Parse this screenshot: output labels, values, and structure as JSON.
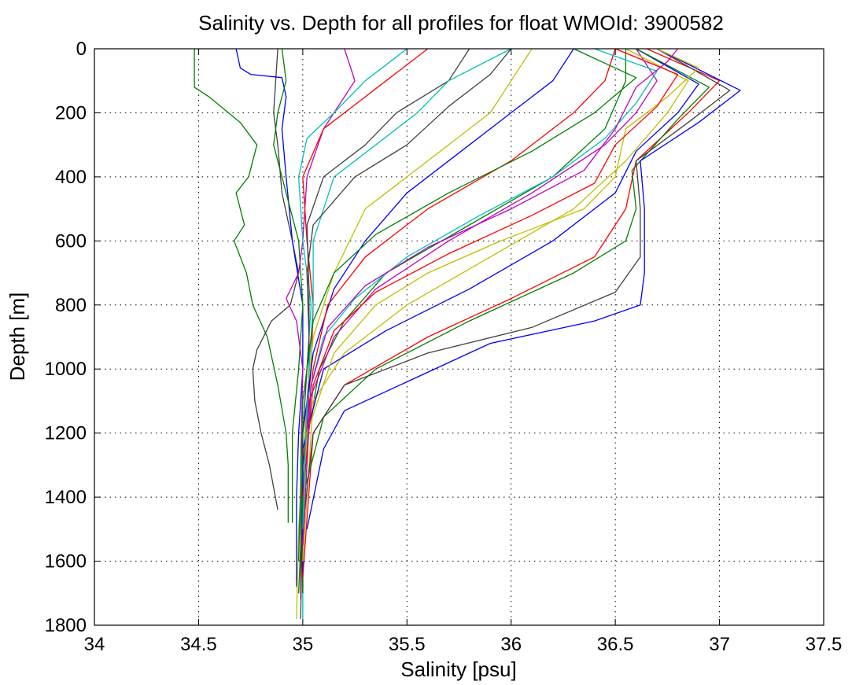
{
  "chart_data": {
    "type": "line",
    "title": "Salinity vs. Depth for all profiles for float WMOId: 3900582",
    "xlabel": "Salinity [psu]",
    "ylabel": "Depth [m]",
    "xlim": [
      34,
      37.5
    ],
    "ylim": [
      0,
      1800
    ],
    "y_reversed": true,
    "grid": "dotted",
    "legend": "none",
    "x_ticks": [
      "34",
      "34.5",
      "35",
      "35.5",
      "36",
      "36.5",
      "37",
      "37.5"
    ],
    "y_ticks": [
      "0",
      "200",
      "400",
      "600",
      "800",
      "1000",
      "1200",
      "1400",
      "1600",
      "1800"
    ],
    "series_colors": [
      "#0000ff",
      "#008000",
      "#ff0000",
      "#00bfbf",
      "#bf00bf",
      "#bfbf00",
      "#404040"
    ],
    "series": [
      {
        "color": "#008000",
        "points": [
          [
            34.48,
            0
          ],
          [
            34.48,
            120
          ],
          [
            34.55,
            150
          ],
          [
            34.7,
            230
          ],
          [
            34.78,
            300
          ],
          [
            34.74,
            400
          ],
          [
            34.68,
            450
          ],
          [
            34.72,
            550
          ],
          [
            34.67,
            600
          ],
          [
            34.73,
            700
          ],
          [
            34.76,
            800
          ],
          [
            34.83,
            900
          ],
          [
            34.88,
            1050
          ],
          [
            34.92,
            1200
          ],
          [
            34.93,
            1300
          ],
          [
            34.93,
            1480
          ]
        ]
      },
      {
        "color": "#404040",
        "points": [
          [
            34.88,
            0
          ],
          [
            34.86,
            200
          ],
          [
            34.88,
            300
          ],
          [
            34.9,
            450
          ],
          [
            34.95,
            600
          ],
          [
            34.98,
            700
          ],
          [
            34.94,
            800
          ],
          [
            34.85,
            850
          ],
          [
            34.78,
            940
          ],
          [
            34.76,
            1000
          ],
          [
            34.77,
            1100
          ],
          [
            34.8,
            1200
          ],
          [
            34.84,
            1300
          ],
          [
            34.88,
            1440
          ]
        ]
      },
      {
        "color": "#0000ff",
        "points": [
          [
            34.68,
            0
          ],
          [
            34.7,
            60
          ],
          [
            34.75,
            80
          ],
          [
            34.9,
            90
          ],
          [
            34.92,
            150
          ],
          [
            34.9,
            250
          ],
          [
            34.92,
            400
          ],
          [
            34.95,
            600
          ],
          [
            35.0,
            800
          ],
          [
            35.0,
            1000
          ],
          [
            34.98,
            1200
          ],
          [
            34.97,
            1400
          ],
          [
            34.97,
            1680
          ]
        ]
      },
      {
        "color": "#008000",
        "points": [
          [
            34.9,
            0
          ],
          [
            34.92,
            100
          ],
          [
            34.88,
            200
          ],
          [
            34.86,
            300
          ],
          [
            34.92,
            450
          ],
          [
            34.98,
            600
          ],
          [
            35.0,
            800
          ],
          [
            34.98,
            1000
          ],
          [
            34.95,
            1200
          ],
          [
            34.95,
            1480
          ]
        ]
      },
      {
        "color": "#bf00bf",
        "points": [
          [
            35.2,
            0
          ],
          [
            35.25,
            100
          ],
          [
            35.1,
            250
          ],
          [
            35.02,
            400
          ],
          [
            35.0,
            600
          ],
          [
            34.98,
            700
          ],
          [
            34.92,
            780
          ],
          [
            34.97,
            850
          ],
          [
            35.0,
            1000
          ],
          [
            34.99,
            1300
          ],
          [
            34.99,
            1600
          ],
          [
            34.99,
            1720
          ]
        ]
      },
      {
        "color": "#00bfbf",
        "points": [
          [
            35.5,
            0
          ],
          [
            35.3,
            100
          ],
          [
            35.15,
            200
          ],
          [
            35.02,
            280
          ],
          [
            34.98,
            400
          ],
          [
            35.0,
            600
          ],
          [
            35.04,
            800
          ],
          [
            35.02,
            1000
          ],
          [
            34.99,
            1300
          ],
          [
            34.99,
            1700
          ]
        ]
      },
      {
        "color": "#ff0000",
        "points": [
          [
            35.6,
            0
          ],
          [
            35.4,
            100
          ],
          [
            35.1,
            250
          ],
          [
            35.0,
            400
          ],
          [
            35.02,
            600
          ],
          [
            35.05,
            800
          ],
          [
            35.04,
            1000
          ],
          [
            35.0,
            1300
          ],
          [
            34.99,
            1700
          ]
        ]
      },
      {
        "color": "#404040",
        "points": [
          [
            35.8,
            0
          ],
          [
            35.7,
            100
          ],
          [
            35.45,
            200
          ],
          [
            35.3,
            300
          ],
          [
            35.1,
            400
          ],
          [
            35.02,
            550
          ],
          [
            35.03,
            750
          ],
          [
            35.03,
            1000
          ],
          [
            35.0,
            1400
          ],
          [
            34.99,
            1780
          ]
        ]
      },
      {
        "color": "#00bfbf",
        "points": [
          [
            36.0,
            0
          ],
          [
            35.7,
            100
          ],
          [
            35.55,
            200
          ],
          [
            35.35,
            300
          ],
          [
            35.15,
            400
          ],
          [
            35.05,
            600
          ],
          [
            35.05,
            800
          ],
          [
            35.03,
            1000
          ],
          [
            35.0,
            1400
          ],
          [
            35.0,
            1780
          ]
        ]
      },
      {
        "color": "#bfbf00",
        "points": [
          [
            36.1,
            0
          ],
          [
            36.0,
            100
          ],
          [
            35.9,
            200
          ],
          [
            35.6,
            350
          ],
          [
            35.3,
            500
          ],
          [
            35.15,
            700
          ],
          [
            35.05,
            900
          ],
          [
            35.02,
            1100
          ],
          [
            34.98,
            1500
          ],
          [
            34.97,
            1780
          ]
        ]
      },
      {
        "color": "#0000ff",
        "points": [
          [
            36.3,
            0
          ],
          [
            36.2,
            100
          ],
          [
            36.0,
            200
          ],
          [
            35.8,
            300
          ],
          [
            35.5,
            450
          ],
          [
            35.3,
            600
          ],
          [
            35.15,
            750
          ],
          [
            35.05,
            950
          ],
          [
            35.0,
            1200
          ],
          [
            35.0,
            1700
          ]
        ]
      },
      {
        "color": "#ff0000",
        "points": [
          [
            36.5,
            0
          ],
          [
            36.45,
            100
          ],
          [
            36.3,
            200
          ],
          [
            36.0,
            350
          ],
          [
            35.6,
            500
          ],
          [
            35.3,
            650
          ],
          [
            35.12,
            800
          ],
          [
            35.05,
            1000
          ],
          [
            35.0,
            1300
          ],
          [
            35.0,
            1680
          ]
        ]
      },
      {
        "color": "#008000",
        "points": [
          [
            36.55,
            0
          ],
          [
            36.55,
            100
          ],
          [
            36.45,
            250
          ],
          [
            36.2,
            400
          ],
          [
            35.8,
            550
          ],
          [
            35.4,
            700
          ],
          [
            35.2,
            850
          ],
          [
            35.08,
            1000
          ],
          [
            35.0,
            1300
          ],
          [
            35.0,
            1700
          ]
        ]
      },
      {
        "color": "#bf00bf",
        "points": [
          [
            36.6,
            0
          ],
          [
            36.7,
            100
          ],
          [
            36.6,
            200
          ],
          [
            36.45,
            300
          ],
          [
            36.1,
            450
          ],
          [
            35.7,
            600
          ],
          [
            35.35,
            750
          ],
          [
            35.15,
            900
          ],
          [
            35.03,
            1100
          ],
          [
            35.0,
            1600
          ]
        ]
      },
      {
        "color": "#bfbf00",
        "points": [
          [
            36.55,
            0
          ],
          [
            36.85,
            100
          ],
          [
            36.75,
            200
          ],
          [
            36.55,
            350
          ],
          [
            36.3,
            500
          ],
          [
            35.9,
            650
          ],
          [
            35.5,
            800
          ],
          [
            35.2,
            950
          ],
          [
            35.05,
            1100
          ],
          [
            35.0,
            1600
          ]
        ]
      },
      {
        "color": "#0000ff",
        "points": [
          [
            36.6,
            0
          ],
          [
            36.9,
            110
          ],
          [
            36.8,
            200
          ],
          [
            36.6,
            320
          ],
          [
            36.5,
            450
          ],
          [
            36.2,
            600
          ],
          [
            35.8,
            750
          ],
          [
            35.4,
            880
          ],
          [
            35.1,
            1000
          ],
          [
            35.0,
            1250
          ],
          [
            35.0,
            1650
          ]
        ]
      },
      {
        "color": "#ff0000",
        "points": [
          [
            36.65,
            0
          ],
          [
            37.0,
            100
          ],
          [
            36.85,
            200
          ],
          [
            36.6,
            350
          ],
          [
            36.55,
            500
          ],
          [
            36.4,
            650
          ],
          [
            36.0,
            780
          ],
          [
            35.6,
            900
          ],
          [
            35.2,
            1050
          ],
          [
            35.05,
            1200
          ],
          [
            35.0,
            1650
          ]
        ]
      },
      {
        "color": "#008000",
        "points": [
          [
            36.6,
            0
          ],
          [
            36.95,
            120
          ],
          [
            36.8,
            220
          ],
          [
            36.58,
            380
          ],
          [
            36.6,
            500
          ],
          [
            36.55,
            600
          ],
          [
            36.3,
            700
          ],
          [
            35.8,
            850
          ],
          [
            35.35,
            1000
          ],
          [
            35.1,
            1150
          ],
          [
            35.0,
            1400
          ],
          [
            34.98,
            1700
          ]
        ]
      },
      {
        "color": "#404040",
        "points": [
          [
            36.7,
            0
          ],
          [
            37.05,
            130
          ],
          [
            36.85,
            230
          ],
          [
            36.6,
            350
          ],
          [
            36.62,
            500
          ],
          [
            36.62,
            650
          ],
          [
            36.5,
            760
          ],
          [
            36.1,
            870
          ],
          [
            35.6,
            950
          ],
          [
            35.2,
            1050
          ],
          [
            35.05,
            1200
          ],
          [
            35.0,
            1500
          ]
        ]
      },
      {
        "color": "#0000ff",
        "points": [
          [
            36.7,
            0
          ],
          [
            37.1,
            130
          ],
          [
            36.9,
            230
          ],
          [
            36.62,
            350
          ],
          [
            36.64,
            500
          ],
          [
            36.64,
            700
          ],
          [
            36.62,
            800
          ],
          [
            36.4,
            850
          ],
          [
            35.9,
            920
          ],
          [
            35.5,
            1040
          ],
          [
            35.2,
            1130
          ],
          [
            35.1,
            1250
          ],
          [
            35.02,
            1500
          ]
        ]
      },
      {
        "color": "#bfbf00",
        "points": [
          [
            36.7,
            0
          ],
          [
            36.9,
            60
          ],
          [
            36.75,
            150
          ],
          [
            36.55,
            250
          ],
          [
            36.5,
            400
          ],
          [
            36.35,
            500
          ],
          [
            35.95,
            600
          ],
          [
            35.6,
            700
          ],
          [
            35.35,
            800
          ],
          [
            35.15,
            950
          ],
          [
            35.02,
            1200
          ],
          [
            35.0,
            1600
          ]
        ]
      },
      {
        "color": "#ff0000",
        "points": [
          [
            36.5,
            0
          ],
          [
            36.8,
            80
          ],
          [
            36.7,
            180
          ],
          [
            36.5,
            300
          ],
          [
            36.4,
            420
          ],
          [
            36.1,
            520
          ],
          [
            35.7,
            640
          ],
          [
            35.35,
            760
          ],
          [
            35.15,
            880
          ],
          [
            35.05,
            1050
          ],
          [
            35.0,
            1400
          ]
        ]
      },
      {
        "color": "#00bfbf",
        "points": [
          [
            36.4,
            0
          ],
          [
            36.7,
            70
          ],
          [
            36.6,
            170
          ],
          [
            36.45,
            280
          ],
          [
            36.2,
            400
          ],
          [
            35.85,
            520
          ],
          [
            35.5,
            650
          ],
          [
            35.25,
            780
          ],
          [
            35.1,
            900
          ],
          [
            35.02,
            1100
          ],
          [
            35.0,
            1500
          ]
        ]
      },
      {
        "color": "#bf00bf",
        "points": [
          [
            36.8,
            0
          ],
          [
            36.75,
            40
          ],
          [
            36.6,
            120
          ],
          [
            36.5,
            250
          ],
          [
            36.35,
            380
          ],
          [
            36.0,
            500
          ],
          [
            35.6,
            620
          ],
          [
            35.3,
            740
          ],
          [
            35.12,
            870
          ],
          [
            35.04,
            1050
          ],
          [
            35.0,
            1550
          ]
        ]
      },
      {
        "color": "#404040",
        "points": [
          [
            36.0,
            0
          ],
          [
            35.9,
            80
          ],
          [
            35.7,
            180
          ],
          [
            35.5,
            300
          ],
          [
            35.25,
            400
          ],
          [
            35.05,
            550
          ],
          [
            35.02,
            700
          ],
          [
            35.03,
            900
          ],
          [
            35.0,
            1200
          ],
          [
            34.99,
            1600
          ]
        ]
      },
      {
        "color": "#008000",
        "points": [
          [
            36.3,
            0
          ],
          [
            36.6,
            90
          ],
          [
            36.4,
            200
          ],
          [
            36.1,
            320
          ],
          [
            35.7,
            450
          ],
          [
            35.35,
            580
          ],
          [
            35.15,
            700
          ],
          [
            35.05,
            850
          ],
          [
            35.0,
            1100
          ],
          [
            34.98,
            1600
          ]
        ]
      }
    ]
  }
}
